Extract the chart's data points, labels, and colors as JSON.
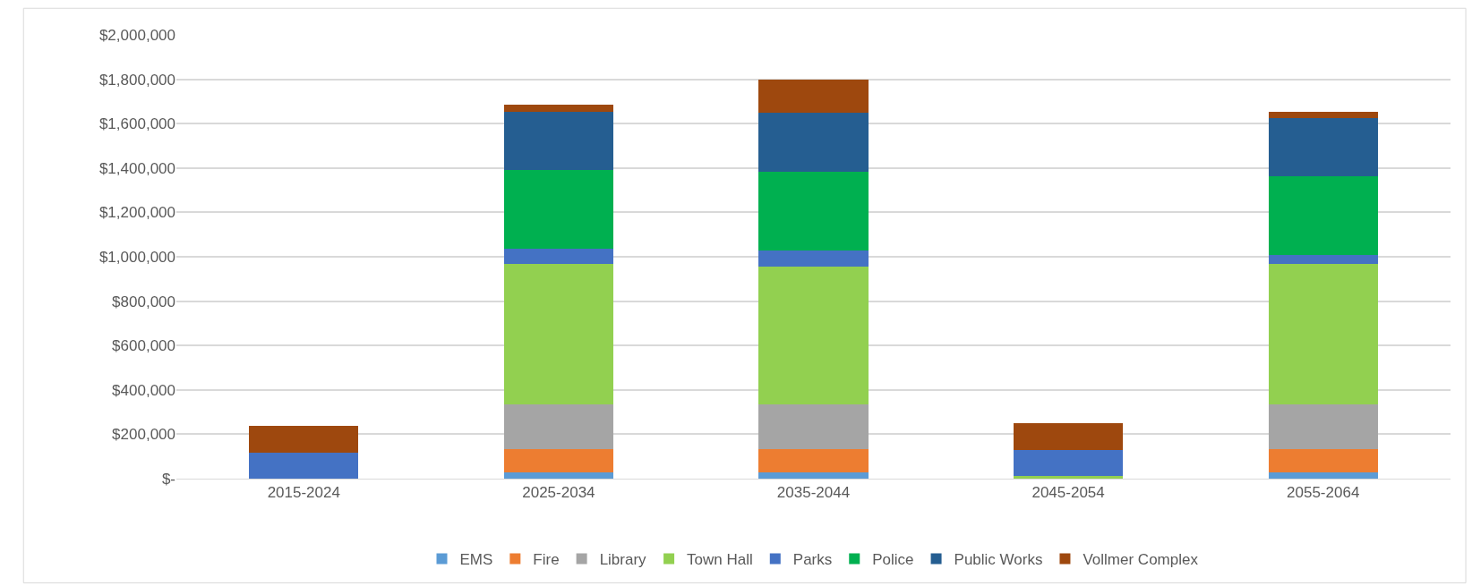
{
  "chart_data": {
    "type": "bar",
    "stacked": true,
    "categories": [
      "2015-2024",
      "2025-2034",
      "2035-2044",
      "2045-2054",
      "2055-2064"
    ],
    "series": [
      {
        "name": "EMS",
        "color": "#5b9bd5",
        "values": [
          0,
          30000,
          30000,
          0,
          30000
        ]
      },
      {
        "name": "Fire",
        "color": "#ed7d31",
        "values": [
          0,
          104000,
          104000,
          0,
          104000
        ]
      },
      {
        "name": "Library",
        "color": "#a5a5a5",
        "values": [
          0,
          199000,
          199000,
          0,
          199000
        ]
      },
      {
        "name": "Town Hall",
        "color": "#92d050",
        "values": [
          0,
          634000,
          622000,
          13000,
          633000
        ]
      },
      {
        "name": "Parks",
        "color": "#4472c4",
        "values": [
          117000,
          71000,
          75000,
          117000,
          42000
        ]
      },
      {
        "name": "Police",
        "color": "#00b050",
        "values": [
          0,
          354000,
          355000,
          0,
          355000
        ]
      },
      {
        "name": "Public Works",
        "color": "#255e91",
        "values": [
          0,
          263000,
          263000,
          0,
          264000
        ]
      },
      {
        "name": "Vollmer Complex",
        "color": "#9e480e",
        "values": [
          121000,
          29000,
          152000,
          120000,
          28000
        ]
      }
    ],
    "ylim": [
      0,
      2000000
    ],
    "yticks": [
      {
        "value": 0,
        "label": "$-"
      },
      {
        "value": 200000,
        "label": "$200,000"
      },
      {
        "value": 400000,
        "label": "$400,000"
      },
      {
        "value": 600000,
        "label": "$600,000"
      },
      {
        "value": 800000,
        "label": "$800,000"
      },
      {
        "value": 1000000,
        "label": "$1,000,000"
      },
      {
        "value": 1200000,
        "label": "$1,200,000"
      },
      {
        "value": 1400000,
        "label": "$1,400,000"
      },
      {
        "value": 1600000,
        "label": "$1,600,000"
      },
      {
        "value": 1800000,
        "label": "$1,800,000"
      },
      {
        "value": 2000000,
        "label": "$2,000,000"
      }
    ],
    "grid": "y",
    "legend": "bottom"
  }
}
